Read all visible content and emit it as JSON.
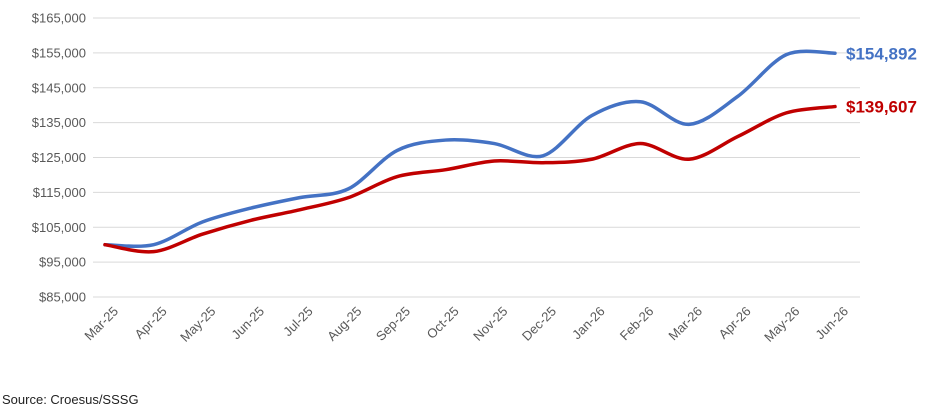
{
  "chart_data": {
    "type": "line",
    "categories": [
      "Mar-25",
      "Apr-25",
      "May-25",
      "Jun-25",
      "Jul-25",
      "Aug-25",
      "Sep-25",
      "Oct-25",
      "Nov-25",
      "Dec-25",
      "Jan-26",
      "Feb-26",
      "Mar-26",
      "Apr-26",
      "May-26",
      "Jun-26"
    ],
    "series": [
      {
        "values": [
          100000,
          100000,
          106500,
          110500,
          113500,
          116000,
          127000,
          130000,
          129000,
          125500,
          137000,
          141000,
          134500,
          142500,
          154500,
          154892
        ],
        "color": "#4472c4",
        "end_label": "$154,892"
      },
      {
        "values": [
          100000,
          98000,
          103000,
          107000,
          110000,
          113500,
          119500,
          121500,
          124000,
          123500,
          124500,
          129000,
          124500,
          131000,
          137800,
          139607
        ],
        "color": "#c00000",
        "end_label": "$139,607"
      }
    ],
    "y_ticks": [
      "$165,000",
      "$155,000",
      "$145,000",
      "$135,000",
      "$125,000",
      "$115,000",
      "$105,000",
      "$95,000",
      "$85,000"
    ],
    "ylim": [
      85000,
      165000
    ],
    "grid": true,
    "legend": "none"
  },
  "footer": {
    "source": "Source: Croesus/SSSG"
  }
}
